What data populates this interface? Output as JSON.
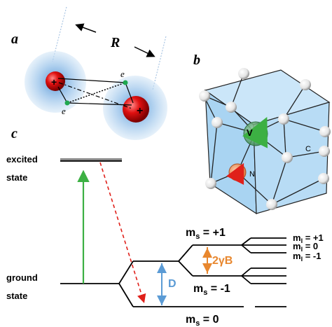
{
  "panel_a": {
    "letter": "a",
    "distance_label": "R",
    "electron_labels": [
      "e",
      "e"
    ],
    "nucleus_sign": "+"
  },
  "panel_b": {
    "letter": "b",
    "vacancy_label": "V",
    "nitrogen_label": "N",
    "carbon_label": "C"
  },
  "panel_c": {
    "letter": "c",
    "excited_line1": "excited",
    "excited_line2": "state",
    "ground_line1": "ground",
    "ground_line2": "state",
    "ms_plus": "m",
    "ms_plus_sub": "s",
    "ms_plus_val": " = +1",
    "ms_minus": "m",
    "ms_minus_sub": "s",
    "ms_minus_val": " = -1",
    "ms_zero": "m",
    "ms_zero_sub": "s",
    "ms_zero_val": " = 0",
    "zeeman_label": "2γB",
    "zfs_label": "D",
    "mi_labels": [
      {
        "m": "m",
        "sub": "I",
        "val": " = +1"
      },
      {
        "m": "m",
        "sub": "I",
        "val": " = 0"
      },
      {
        "m": "m",
        "sub": "I",
        "val": " = -1"
      }
    ]
  },
  "colors": {
    "glow": "#9fc6ea",
    "nucleus_red": "#e01010",
    "electron_green": "#1fa84f",
    "crystal_fill": "#b8dcf5",
    "green_arrow": "#3cb043",
    "red_dashed": "#e0201a",
    "zeeman_orange": "#e8872e",
    "zfs_blue": "#5b9bd5"
  }
}
